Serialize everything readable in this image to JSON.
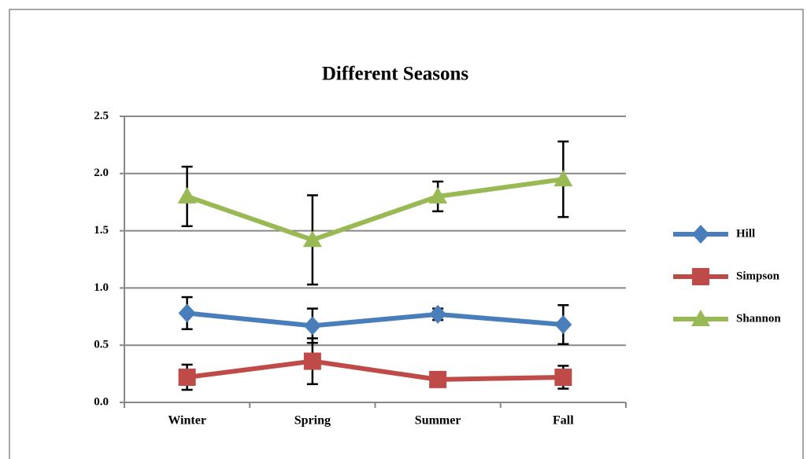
{
  "chart_data": {
    "type": "line",
    "title": "Different Seasons",
    "categories": [
      "Winter",
      "Spring",
      "Summer",
      "Fall"
    ],
    "series": [
      {
        "name": "Hill",
        "color": "#4a7ebb",
        "marker": "diamond",
        "values": [
          0.78,
          0.67,
          0.77,
          0.68
        ],
        "errors": [
          0.14,
          0.15,
          0.05,
          0.17
        ]
      },
      {
        "name": "Simpson",
        "color": "#be4b48",
        "marker": "square",
        "values": [
          0.22,
          0.36,
          0.2,
          0.22
        ],
        "errors": [
          0.11,
          0.2,
          0.03,
          0.1
        ]
      },
      {
        "name": "Shannon",
        "color": "#98b954",
        "marker": "triangle",
        "values": [
          1.8,
          1.42,
          1.8,
          1.95
        ],
        "errors": [
          0.26,
          0.39,
          0.13,
          0.33
        ]
      }
    ],
    "ylim": [
      0,
      2.5
    ],
    "yticks": [
      {
        "value": 0,
        "label": "0.0"
      },
      {
        "value": 0.5,
        "label": "0.5"
      },
      {
        "value": 1,
        "label": "1.0"
      },
      {
        "value": 1.5,
        "label": "1.5"
      },
      {
        "value": 2,
        "label": "2.0"
      },
      2.5
    ],
    "grid": true,
    "legend": "right"
  }
}
